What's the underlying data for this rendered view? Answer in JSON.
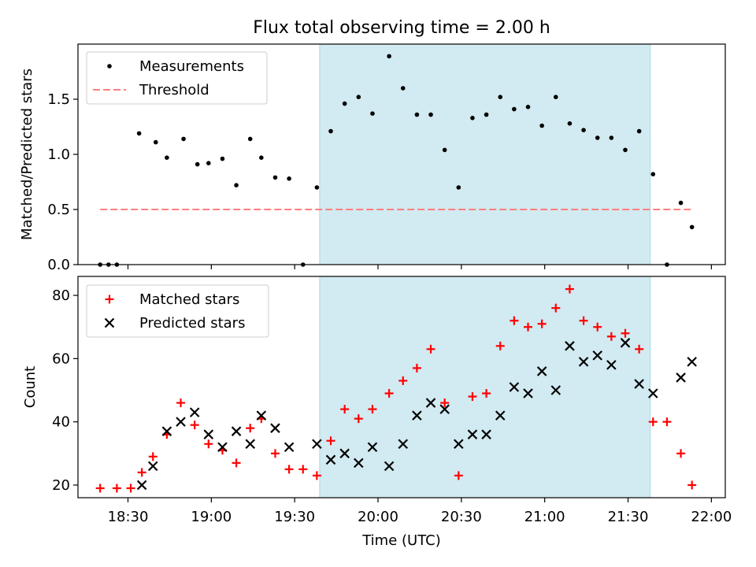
{
  "chart_data": [
    {
      "type": "scatter",
      "title": "Flux total observing time = 2.00 h",
      "xlabel": "",
      "ylabel": "Matched/Predicted stars",
      "xlim": [
        "18:12",
        "22:05"
      ],
      "ylim": [
        0,
        2.0
      ],
      "yticks": [
        "0.0",
        "0.5",
        "1.0",
        "1.5"
      ],
      "highlight_span": [
        "19:39",
        "21:38"
      ],
      "highlight_color": "#add8e6",
      "legend_position": "upper left",
      "legend": [
        {
          "label": "Measurements",
          "marker": "dot",
          "color": "#000000"
        },
        {
          "label": "Threshold",
          "marker": "dashed-line",
          "color": "#ff7f7f"
        }
      ],
      "threshold": {
        "y": 0.5,
        "x_start": "18:20",
        "x_end": "21:53"
      },
      "series": [
        {
          "name": "Measurements",
          "points": [
            [
              "18:20",
              0.0
            ],
            [
              "18:23",
              0.0
            ],
            [
              "18:26",
              0.0
            ],
            [
              "18:34",
              1.19
            ],
            [
              "18:40",
              1.11
            ],
            [
              "18:44",
              0.97
            ],
            [
              "18:50",
              1.14
            ],
            [
              "18:55",
              0.91
            ],
            [
              "18:59",
              0.92
            ],
            [
              "19:04",
              0.96
            ],
            [
              "19:09",
              0.72
            ],
            [
              "19:14",
              1.14
            ],
            [
              "19:18",
              0.97
            ],
            [
              "19:23",
              0.79
            ],
            [
              "19:28",
              0.78
            ],
            [
              "19:33",
              0.0
            ],
            [
              "19:38",
              0.7
            ],
            [
              "19:43",
              1.21
            ],
            [
              "19:48",
              1.46
            ],
            [
              "19:53",
              1.52
            ],
            [
              "19:58",
              1.37
            ],
            [
              "20:04",
              1.89
            ],
            [
              "20:09",
              1.6
            ],
            [
              "20:14",
              1.36
            ],
            [
              "20:19",
              1.36
            ],
            [
              "20:24",
              1.04
            ],
            [
              "20:29",
              0.7
            ],
            [
              "20:34",
              1.33
            ],
            [
              "20:39",
              1.36
            ],
            [
              "20:44",
              1.52
            ],
            [
              "20:49",
              1.41
            ],
            [
              "20:54",
              1.43
            ],
            [
              "20:59",
              1.26
            ],
            [
              "21:04",
              1.52
            ],
            [
              "21:09",
              1.28
            ],
            [
              "21:14",
              1.22
            ],
            [
              "21:19",
              1.15
            ],
            [
              "21:24",
              1.15
            ],
            [
              "21:29",
              1.04
            ],
            [
              "21:34",
              1.21
            ],
            [
              "21:39",
              0.82
            ],
            [
              "21:44",
              0.0
            ],
            [
              "21:49",
              0.56
            ],
            [
              "21:53",
              0.34
            ]
          ]
        }
      ]
    },
    {
      "type": "scatter",
      "title": "",
      "xlabel": "Time (UTC)",
      "ylabel": "Count",
      "xlim": [
        "18:12",
        "22:05"
      ],
      "ylim": [
        16,
        86
      ],
      "xticks": [
        "18:30",
        "19:00",
        "19:30",
        "20:00",
        "20:30",
        "21:00",
        "21:30",
        "22:00"
      ],
      "yticks": [
        "20",
        "40",
        "60",
        "80"
      ],
      "highlight_span": [
        "19:39",
        "21:38"
      ],
      "legend_position": "upper left",
      "legend": [
        {
          "label": "Matched stars",
          "marker": "plus",
          "color": "#ff0000"
        },
        {
          "label": "Predicted stars",
          "marker": "x",
          "color": "#000000"
        }
      ],
      "series": [
        {
          "name": "Matched stars",
          "marker": "plus",
          "color": "#ff0000",
          "points": [
            [
              "18:20",
              19
            ],
            [
              "18:26",
              19
            ],
            [
              "18:31",
              19
            ],
            [
              "18:35",
              24
            ],
            [
              "18:39",
              29
            ],
            [
              "18:44",
              36
            ],
            [
              "18:49",
              46
            ],
            [
              "18:54",
              39
            ],
            [
              "18:59",
              33
            ],
            [
              "19:04",
              31
            ],
            [
              "19:09",
              27
            ],
            [
              "19:14",
              38
            ],
            [
              "19:18",
              41
            ],
            [
              "19:23",
              30
            ],
            [
              "19:28",
              25
            ],
            [
              "19:33",
              25
            ],
            [
              "19:38",
              23
            ],
            [
              "19:43",
              34
            ],
            [
              "19:48",
              44
            ],
            [
              "19:53",
              41
            ],
            [
              "19:58",
              44
            ],
            [
              "20:04",
              49
            ],
            [
              "20:09",
              53
            ],
            [
              "20:14",
              57
            ],
            [
              "20:19",
              63
            ],
            [
              "20:24",
              46
            ],
            [
              "20:29",
              23
            ],
            [
              "20:34",
              48
            ],
            [
              "20:39",
              49
            ],
            [
              "20:44",
              64
            ],
            [
              "20:49",
              72
            ],
            [
              "20:54",
              70
            ],
            [
              "20:59",
              71
            ],
            [
              "21:04",
              76
            ],
            [
              "21:09",
              82
            ],
            [
              "21:14",
              72
            ],
            [
              "21:19",
              70
            ],
            [
              "21:24",
              67
            ],
            [
              "21:29",
              68
            ],
            [
              "21:34",
              63
            ],
            [
              "21:39",
              40
            ],
            [
              "21:44",
              40
            ],
            [
              "21:49",
              30
            ],
            [
              "21:53",
              20
            ]
          ]
        },
        {
          "name": "Predicted stars",
          "marker": "x",
          "color": "#000000",
          "points": [
            [
              "18:35",
              20
            ],
            [
              "18:39",
              26
            ],
            [
              "18:44",
              37
            ],
            [
              "18:49",
              40
            ],
            [
              "18:54",
              43
            ],
            [
              "18:59",
              36
            ],
            [
              "19:04",
              32
            ],
            [
              "19:09",
              37
            ],
            [
              "19:14",
              33
            ],
            [
              "19:18",
              42
            ],
            [
              "19:23",
              38
            ],
            [
              "19:28",
              32
            ],
            [
              "19:38",
              33
            ],
            [
              "19:43",
              28
            ],
            [
              "19:48",
              30
            ],
            [
              "19:53",
              27
            ],
            [
              "19:58",
              32
            ],
            [
              "20:04",
              26
            ],
            [
              "20:09",
              33
            ],
            [
              "20:14",
              42
            ],
            [
              "20:19",
              46
            ],
            [
              "20:24",
              44
            ],
            [
              "20:29",
              33
            ],
            [
              "20:34",
              36
            ],
            [
              "20:39",
              36
            ],
            [
              "20:44",
              42
            ],
            [
              "20:49",
              51
            ],
            [
              "20:54",
              49
            ],
            [
              "20:59",
              56
            ],
            [
              "21:04",
              50
            ],
            [
              "21:09",
              64
            ],
            [
              "21:14",
              59
            ],
            [
              "21:19",
              61
            ],
            [
              "21:24",
              58
            ],
            [
              "21:29",
              65
            ],
            [
              "21:34",
              52
            ],
            [
              "21:39",
              49
            ],
            [
              "21:49",
              54
            ],
            [
              "21:53",
              59
            ]
          ]
        }
      ]
    }
  ]
}
